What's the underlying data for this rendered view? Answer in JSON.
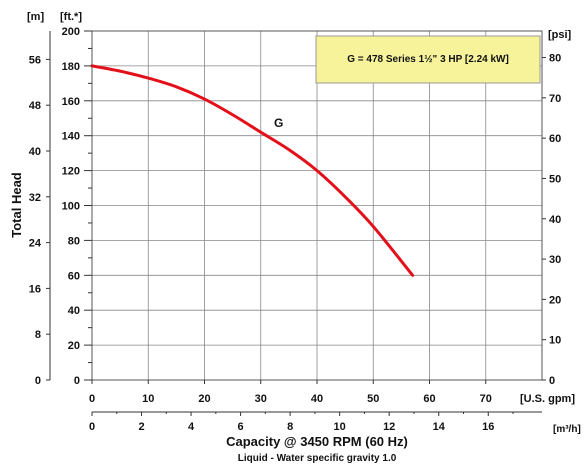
{
  "chart_data": {
    "type": "line",
    "title": "",
    "xlabel": "Capacity @ 3450 RPM (60 Hz)",
    "xlabel_sub": "Liquid - Water specific gravity 1.0",
    "ylabel": "Total Head",
    "x_unit": "[U.S. gpm]",
    "x2_unit": "[m³/h]",
    "y_unit_ft": "[ft.*]",
    "y_unit_m": "[m]",
    "y_unit_psi": "[psi]",
    "xlim": [
      0,
      80
    ],
    "ylim": [
      0,
      200
    ],
    "x_ticks": [
      "0",
      "10",
      "20",
      "30",
      "40",
      "50",
      "60",
      "70"
    ],
    "x2_ticks": [
      "0",
      "2",
      "4",
      "6",
      "8",
      "10",
      "12",
      "14",
      "16"
    ],
    "y_ticks": [
      "0",
      "20",
      "40",
      "60",
      "80",
      "100",
      "120",
      "140",
      "160",
      "180",
      "200"
    ],
    "m_ticks": [
      "0",
      "8",
      "16",
      "24",
      "32",
      "40",
      "48",
      "56"
    ],
    "psi_ticks": [
      "0",
      "10",
      "20",
      "30",
      "40",
      "50",
      "60",
      "70",
      "80"
    ],
    "grid": true,
    "legend_text": "G = 478 Series 1½\" 3 HP [2.24 kW]",
    "colors": {
      "curve": "#e3101a",
      "legend_bg": "#f7f39b",
      "grid": "#888888"
    },
    "series": [
      {
        "name": "G",
        "x": [
          0,
          5,
          10,
          15,
          20,
          25,
          30,
          35,
          40,
          45,
          50,
          57
        ],
        "y": [
          180,
          177,
          173,
          168,
          161,
          152,
          142,
          132,
          120,
          105,
          88,
          60
        ]
      }
    ]
  }
}
